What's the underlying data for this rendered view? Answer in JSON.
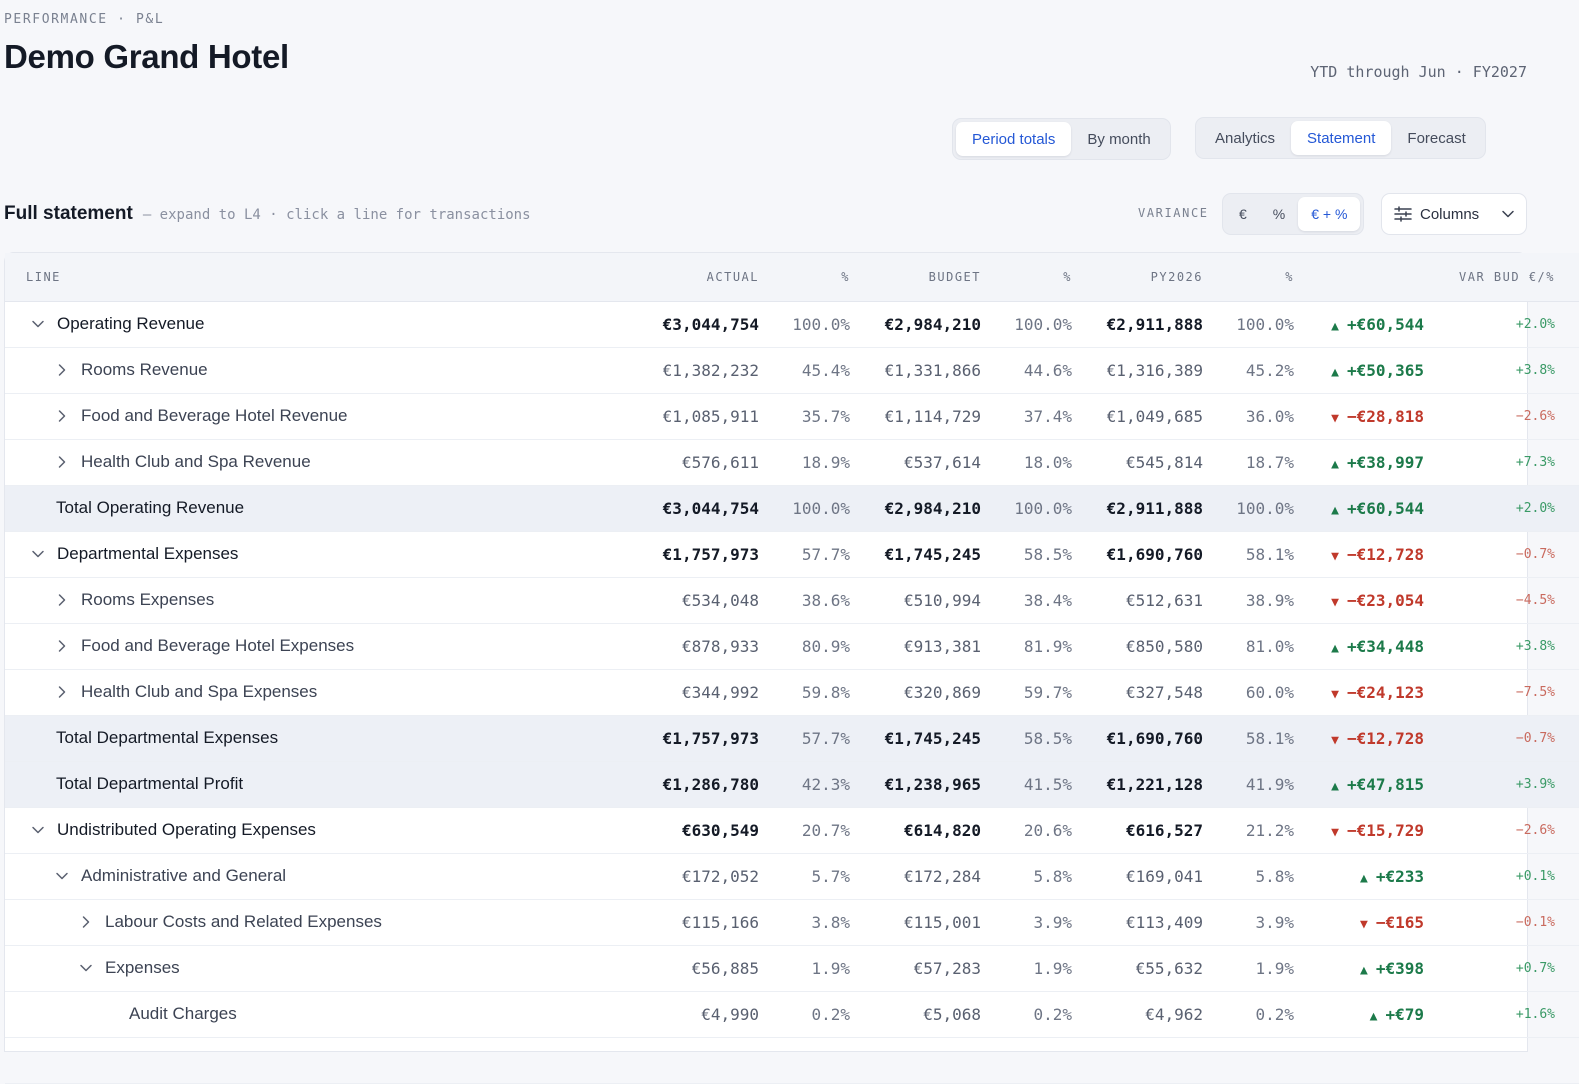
{
  "header": {
    "eyebrow": "PERFORMANCE · P&L",
    "title": "Demo Grand Hotel",
    "period": "YTD through Jun · FY2027"
  },
  "view_toggle": {
    "options": [
      "Period totals",
      "By month"
    ],
    "active": 0
  },
  "main_tabs": {
    "options": [
      "Analytics",
      "Statement",
      "Forecast"
    ],
    "active": 1
  },
  "section": {
    "title": "Full statement",
    "hint": "— expand to L4 · click a line for transactions"
  },
  "variance": {
    "label": "VARIANCE",
    "options": [
      "€",
      "%",
      "€ + %"
    ],
    "active": 2
  },
  "columns_button": {
    "label": "Columns",
    "icon": "sliders-icon"
  },
  "table": {
    "headers": [
      "LINE",
      "ACTUAL",
      "%",
      "BUDGET",
      "%",
      "PY2026",
      "%",
      "VAR BUD €/%"
    ],
    "rows": [
      {
        "label": "Operating Revenue",
        "indent": 0,
        "toggle": "expanded",
        "type": "header",
        "actual": "€3,044,754",
        "actual_pct": "100.0%",
        "budget": "€2,984,210",
        "budget_pct": "100.0%",
        "py": "€2,911,888",
        "py_pct": "100.0%",
        "dir": "up",
        "var": "+€60,544",
        "var_pct": "+2.0%"
      },
      {
        "label": "Rooms Revenue",
        "indent": 1,
        "toggle": "collapsed",
        "type": "line",
        "actual": "€1,382,232",
        "actual_pct": "45.4%",
        "budget": "€1,331,866",
        "budget_pct": "44.6%",
        "py": "€1,316,389",
        "py_pct": "45.2%",
        "dir": "up",
        "var": "+€50,365",
        "var_pct": "+3.8%"
      },
      {
        "label": "Food and Beverage Hotel Revenue",
        "indent": 1,
        "toggle": "collapsed",
        "type": "line",
        "actual": "€1,085,911",
        "actual_pct": "35.7%",
        "budget": "€1,114,729",
        "budget_pct": "37.4%",
        "py": "€1,049,685",
        "py_pct": "36.0%",
        "dir": "down",
        "var": "−€28,818",
        "var_pct": "−2.6%"
      },
      {
        "label": "Health Club and Spa Revenue",
        "indent": 1,
        "toggle": "collapsed",
        "type": "line",
        "actual": "€576,611",
        "actual_pct": "18.9%",
        "budget": "€537,614",
        "budget_pct": "18.0%",
        "py": "€545,814",
        "py_pct": "18.7%",
        "dir": "up",
        "var": "+€38,997",
        "var_pct": "+7.3%"
      },
      {
        "label": "Total Operating Revenue",
        "indent": 0,
        "toggle": "none",
        "type": "total",
        "actual": "€3,044,754",
        "actual_pct": "100.0%",
        "budget": "€2,984,210",
        "budget_pct": "100.0%",
        "py": "€2,911,888",
        "py_pct": "100.0%",
        "dir": "up",
        "var": "+€60,544",
        "var_pct": "+2.0%"
      },
      {
        "label": "Departmental Expenses",
        "indent": 0,
        "toggle": "expanded",
        "type": "header",
        "actual": "€1,757,973",
        "actual_pct": "57.7%",
        "budget": "€1,745,245",
        "budget_pct": "58.5%",
        "py": "€1,690,760",
        "py_pct": "58.1%",
        "dir": "down",
        "var": "−€12,728",
        "var_pct": "−0.7%"
      },
      {
        "label": "Rooms Expenses",
        "indent": 1,
        "toggle": "collapsed",
        "type": "line",
        "actual": "€534,048",
        "actual_pct": "38.6%",
        "budget": "€510,994",
        "budget_pct": "38.4%",
        "py": "€512,631",
        "py_pct": "38.9%",
        "dir": "down",
        "var": "−€23,054",
        "var_pct": "−4.5%"
      },
      {
        "label": "Food and Beverage Hotel Expenses",
        "indent": 1,
        "toggle": "collapsed",
        "type": "line",
        "actual": "€878,933",
        "actual_pct": "80.9%",
        "budget": "€913,381",
        "budget_pct": "81.9%",
        "py": "€850,580",
        "py_pct": "81.0%",
        "dir": "up",
        "var": "+€34,448",
        "var_pct": "+3.8%"
      },
      {
        "label": "Health Club and Spa Expenses",
        "indent": 1,
        "toggle": "collapsed",
        "type": "line",
        "actual": "€344,992",
        "actual_pct": "59.8%",
        "budget": "€320,869",
        "budget_pct": "59.7%",
        "py": "€327,548",
        "py_pct": "60.0%",
        "dir": "down",
        "var": "−€24,123",
        "var_pct": "−7.5%"
      },
      {
        "label": "Total Departmental Expenses",
        "indent": 0,
        "toggle": "none",
        "type": "total",
        "actual": "€1,757,973",
        "actual_pct": "57.7%",
        "budget": "€1,745,245",
        "budget_pct": "58.5%",
        "py": "€1,690,760",
        "py_pct": "58.1%",
        "dir": "down",
        "var": "−€12,728",
        "var_pct": "−0.7%"
      },
      {
        "label": "Total Departmental Profit",
        "indent": 0,
        "toggle": "none",
        "type": "total",
        "actual": "€1,286,780",
        "actual_pct": "42.3%",
        "budget": "€1,238,965",
        "budget_pct": "41.5%",
        "py": "€1,221,128",
        "py_pct": "41.9%",
        "dir": "up",
        "var": "+€47,815",
        "var_pct": "+3.9%"
      },
      {
        "label": "Undistributed Operating Expenses",
        "indent": 0,
        "toggle": "expanded",
        "type": "header",
        "actual": "€630,549",
        "actual_pct": "20.7%",
        "budget": "€614,820",
        "budget_pct": "20.6%",
        "py": "€616,527",
        "py_pct": "21.2%",
        "dir": "down",
        "var": "−€15,729",
        "var_pct": "−2.6%"
      },
      {
        "label": "Administrative and General",
        "indent": 1,
        "toggle": "expanded",
        "type": "line",
        "actual": "€172,052",
        "actual_pct": "5.7%",
        "budget": "€172,284",
        "budget_pct": "5.8%",
        "py": "€169,041",
        "py_pct": "5.8%",
        "dir": "up",
        "var": "+€233",
        "var_pct": "+0.1%"
      },
      {
        "label": "Labour Costs and Related Expenses",
        "indent": 2,
        "toggle": "collapsed",
        "type": "line",
        "actual": "€115,166",
        "actual_pct": "3.8%",
        "budget": "€115,001",
        "budget_pct": "3.9%",
        "py": "€113,409",
        "py_pct": "3.9%",
        "dir": "down",
        "var": "−€165",
        "var_pct": "−0.1%"
      },
      {
        "label": "Expenses",
        "indent": 2,
        "toggle": "expanded",
        "type": "line",
        "actual": "€56,885",
        "actual_pct": "1.9%",
        "budget": "€57,283",
        "budget_pct": "1.9%",
        "py": "€55,632",
        "py_pct": "1.9%",
        "dir": "up",
        "var": "+€398",
        "var_pct": "+0.7%"
      },
      {
        "label": "Audit Charges",
        "indent": 3,
        "toggle": "none",
        "type": "leaf",
        "actual": "€4,990",
        "actual_pct": "0.2%",
        "budget": "€5,068",
        "budget_pct": "0.2%",
        "py": "€4,962",
        "py_pct": "0.2%",
        "dir": "up",
        "var": "+€79",
        "var_pct": "+1.6%"
      },
      {
        "label": "",
        "indent": 3,
        "toggle": "none",
        "type": "leaf",
        "actual": "",
        "actual_pct": "",
        "budget": "",
        "budget_pct": "",
        "py": "",
        "py_pct": "",
        "dir": "",
        "var": "",
        "var_pct": ""
      }
    ]
  },
  "colors": {
    "accent": "#2458d6",
    "positive": "#1c7a4a",
    "negative": "#c0392b",
    "total_row": "#edf0f6"
  }
}
